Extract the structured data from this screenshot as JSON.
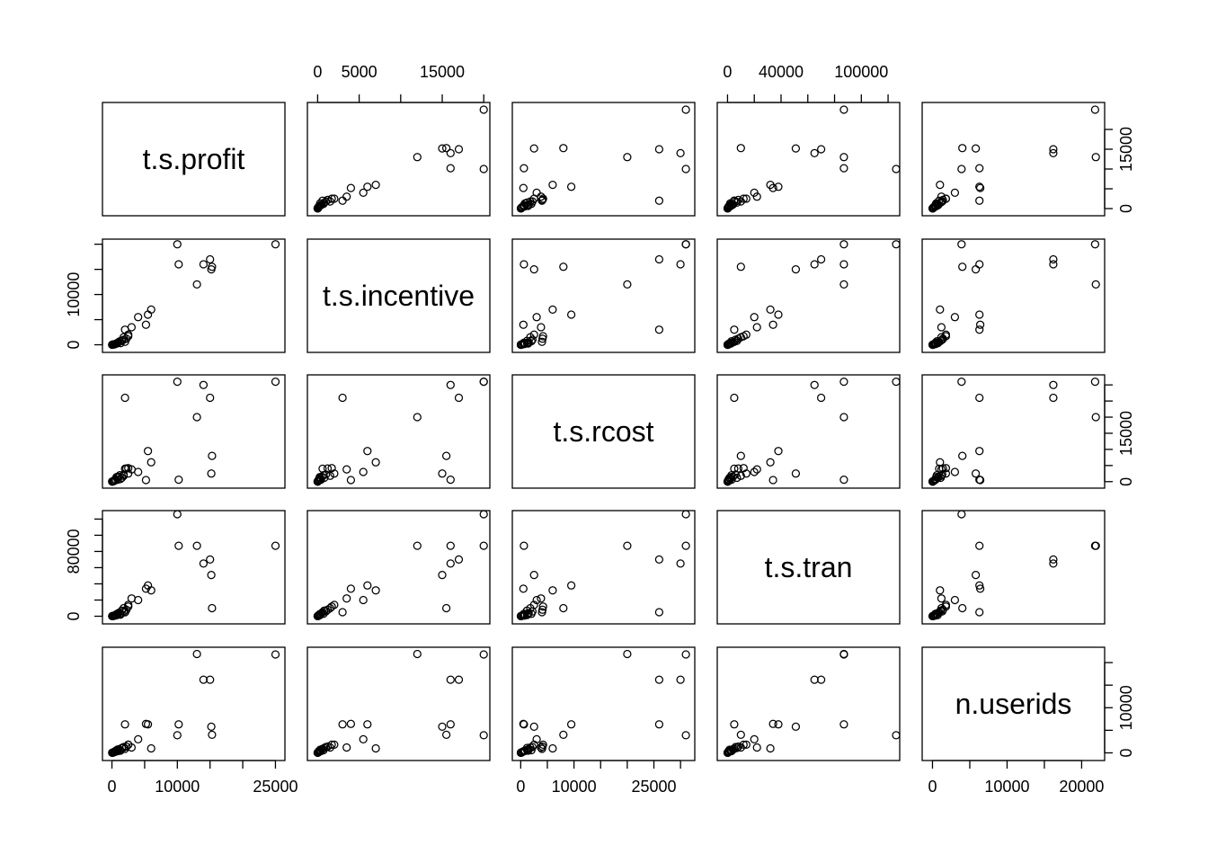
{
  "chart_data": {
    "type": "scatter",
    "kind": "scatterplot-matrix",
    "variables": [
      "t.s.profit",
      "t.s.incentive",
      "t.s.rcost",
      "t.s.tran",
      "n.userids"
    ],
    "limits": [
      [
        -900,
        25900
      ],
      [
        -800,
        20300
      ],
      [
        -900,
        32000
      ],
      [
        -5000,
        126000
      ],
      [
        -900,
        22600
      ]
    ],
    "ticks": [
      [
        0,
        10000,
        25000
      ],
      [
        0,
        5000,
        15000
      ],
      [
        0,
        10000,
        25000
      ],
      [
        0,
        40000,
        100000
      ],
      [
        0,
        10000,
        20000
      ]
    ],
    "y_ticks": [
      [
        0,
        15000
      ],
      [
        0,
        10000
      ],
      [
        0,
        15000
      ],
      [
        0,
        80000
      ],
      [
        0,
        10000
      ]
    ],
    "y_tick_marks": [
      [
        0,
        5000,
        10000,
        15000,
        20000
      ],
      [
        0,
        5000,
        10000,
        15000,
        20000
      ],
      [
        0,
        5000,
        10000,
        15000,
        20000,
        25000,
        30000
      ],
      [
        0,
        20000,
        40000,
        60000,
        80000,
        100000,
        120000
      ],
      [
        0,
        5000,
        10000,
        15000,
        20000
      ]
    ],
    "x_tick_marks": [
      [
        0,
        5000,
        10000,
        15000,
        20000,
        25000
      ],
      [
        0,
        5000,
        10000,
        15000,
        20000
      ],
      [
        0,
        5000,
        10000,
        15000,
        20000,
        25000,
        30000
      ],
      [
        0,
        20000,
        40000,
        60000,
        80000,
        100000,
        120000
      ],
      [
        0,
        5000,
        10000,
        15000,
        20000
      ]
    ],
    "points": [
      [
        25000,
        20000,
        31000,
        87000,
        21800
      ],
      [
        14000,
        16000,
        30000,
        65000,
        16200
      ],
      [
        15000,
        17000,
        26000,
        70000,
        16200
      ],
      [
        13000,
        12000,
        20000,
        87000,
        21900
      ],
      [
        15200,
        15000,
        2500,
        51000,
        5800
      ],
      [
        15300,
        15500,
        8000,
        10000,
        4000
      ],
      [
        10000,
        20000,
        31000,
        126000,
        3900
      ],
      [
        10200,
        16000,
        600,
        87000,
        6300
      ],
      [
        2000,
        3000,
        26000,
        5000,
        6300
      ],
      [
        4000,
        5500,
        3000,
        20000,
        3000
      ],
      [
        5500,
        6000,
        9500,
        38000,
        6300
      ],
      [
        6000,
        7000,
        6000,
        32000,
        1000
      ],
      [
        5200,
        4000,
        500,
        34000,
        6400
      ],
      [
        3000,
        3500,
        3800,
        22000,
        1200
      ],
      [
        2500,
        2000,
        2500,
        14000,
        1800
      ],
      [
        1800,
        1500,
        1800,
        10000,
        1200
      ],
      [
        2500,
        1700,
        4200,
        12000,
        1800
      ],
      [
        2200,
        1200,
        4100,
        8000,
        1400
      ],
      [
        1800,
        1000,
        2200,
        6000,
        1300
      ],
      [
        2000,
        600,
        4000,
        5000,
        900
      ],
      [
        1500,
        800,
        1200,
        7000,
        1100
      ],
      [
        1200,
        700,
        2000,
        3000,
        600
      ],
      [
        1000,
        500,
        1500,
        4000,
        800
      ],
      [
        1300,
        300,
        800,
        2000,
        500
      ],
      [
        900,
        400,
        600,
        3000,
        400
      ],
      [
        800,
        300,
        1200,
        1500,
        700
      ],
      [
        600,
        200,
        500,
        1200,
        300
      ],
      [
        500,
        150,
        700,
        800,
        400
      ],
      [
        400,
        100,
        300,
        1000,
        200
      ],
      [
        700,
        250,
        1400,
        2500,
        500
      ],
      [
        300,
        80,
        200,
        500,
        150
      ],
      [
        200,
        60,
        150,
        400,
        100
      ],
      [
        150,
        40,
        100,
        300,
        80
      ],
      [
        100,
        30,
        80,
        200,
        60
      ],
      [
        80,
        20,
        60,
        150,
        40
      ],
      [
        60,
        10,
        50,
        100,
        30
      ],
      [
        50,
        5,
        40,
        80,
        20
      ],
      [
        30,
        5,
        30,
        60,
        10
      ]
    ]
  }
}
